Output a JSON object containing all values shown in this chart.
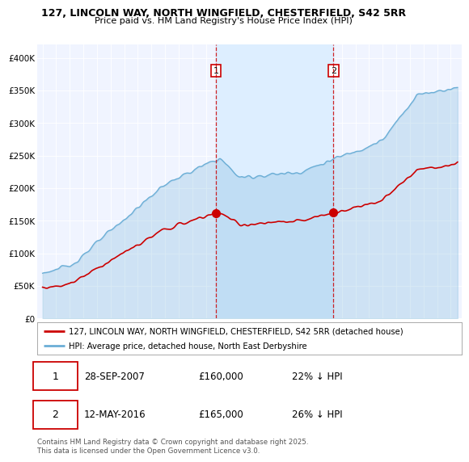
{
  "title_line1": "127, LINCOLN WAY, NORTH WINGFIELD, CHESTERFIELD, S42 5RR",
  "title_line2": "Price paid vs. HM Land Registry's House Price Index (HPI)",
  "legend_label1": "127, LINCOLN WAY, NORTH WINGFIELD, CHESTERFIELD, S42 5RR (detached house)",
  "legend_label2": "HPI: Average price, detached house, North East Derbyshire",
  "transaction1_date": "28-SEP-2007",
  "transaction1_price": "£160,000",
  "transaction1_hpi": "22% ↓ HPI",
  "transaction2_date": "12-MAY-2016",
  "transaction2_price": "£165,000",
  "transaction2_hpi": "26% ↓ HPI",
  "footnote": "Contains HM Land Registry data © Crown copyright and database right 2025.\nThis data is licensed under the Open Government Licence v3.0.",
  "hpi_color": "#6baed6",
  "price_color": "#cc0000",
  "vline_color": "#cc0000",
  "shade_color": "#ddeeff",
  "plot_bg_color": "#f0f4ff",
  "ylim_min": 0,
  "ylim_max": 420000,
  "yticks": [
    0,
    50000,
    100000,
    150000,
    200000,
    250000,
    300000,
    350000,
    400000
  ],
  "ytick_labels": [
    "£0",
    "£50K",
    "£100K",
    "£150K",
    "£200K",
    "£250K",
    "£300K",
    "£350K",
    "£400K"
  ],
  "transaction1_year": 2007.75,
  "transaction2_year": 2016.37
}
